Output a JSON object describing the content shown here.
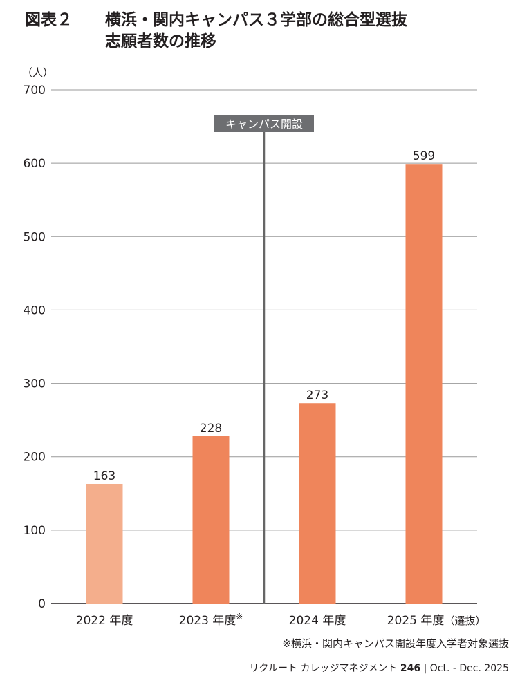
{
  "title": {
    "number": "図表２",
    "line1": "横浜・関内キャンパス３学部の総合型選抜",
    "line2": "志願者数の推移"
  },
  "chart_data": {
    "type": "bar",
    "title": "横浜・関内キャンパス３学部の総合型選抜志願者数の推移",
    "ylabel": "（人）",
    "ylim": [
      0,
      700
    ],
    "yticks": [
      0,
      100,
      200,
      300,
      400,
      500,
      600,
      700
    ],
    "grid": true,
    "categories": [
      "2022 年度",
      "2023 年度",
      "2024 年度",
      "2025 年度"
    ],
    "category_suffixes": [
      "",
      "※",
      "",
      "（選抜）"
    ],
    "values": [
      163,
      228,
      273,
      599
    ],
    "value_labels": [
      "163",
      "228",
      "273",
      "599"
    ],
    "bar_colors": [
      "#f4ae8c",
      "#ef855b",
      "#ef855b",
      "#ef855b"
    ],
    "annotation": {
      "label": "キャンパス開設",
      "between": [
        1,
        2
      ]
    }
  },
  "footnote": "※横浜・関内キャンパス開設年度入学者対象選抜",
  "source": {
    "publication": "リクルート カレッジマネジメント",
    "issue": "246",
    "date": "Oct. - Dec. 2025"
  },
  "colors": {
    "grid": "#999999",
    "axis": "#231f20",
    "marker_line": "#666666",
    "marker_label_bg": "#6d6e71"
  }
}
